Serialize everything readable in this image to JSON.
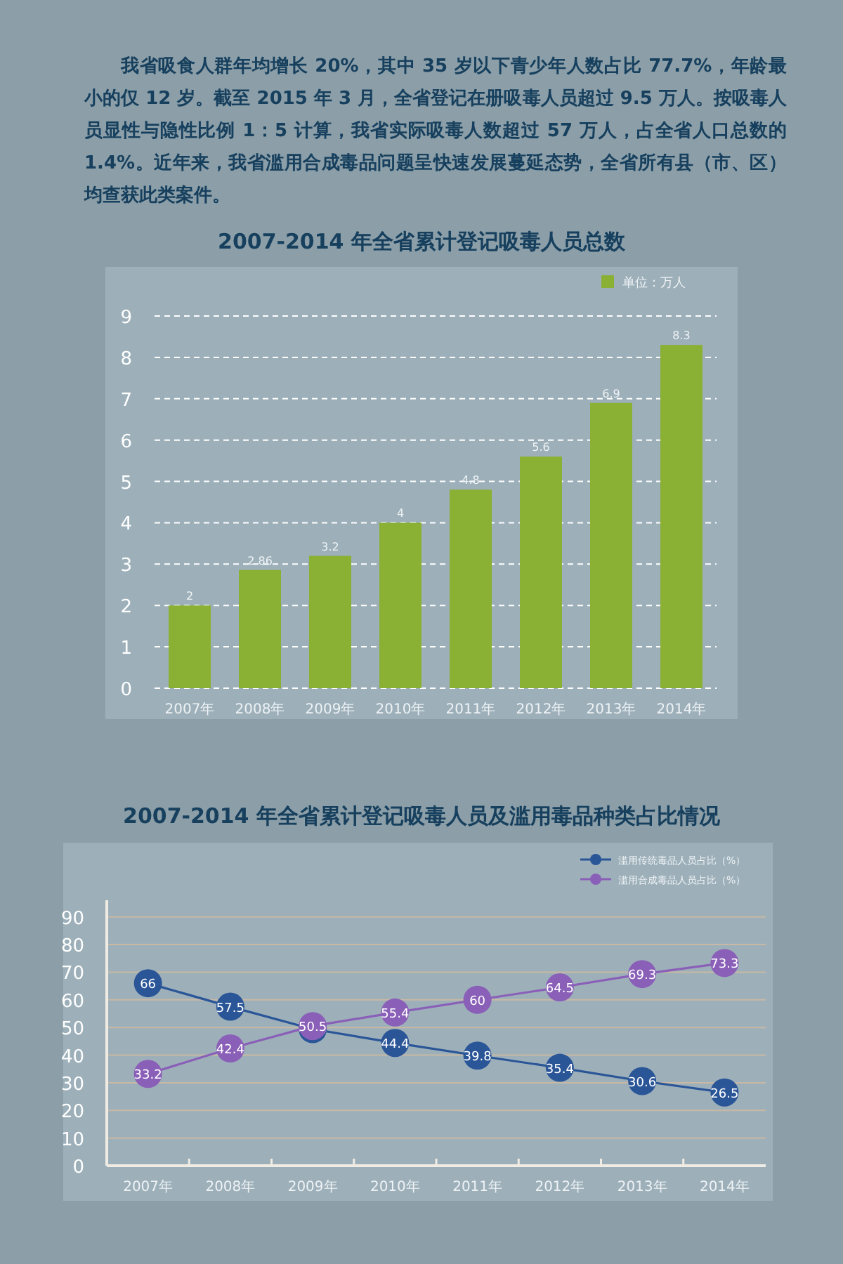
{
  "chart_data": [
    {
      "type": "bar",
      "title": "2007-2014 年全省累计登记吸毒人员总数",
      "annotations": [
        "我省吸食人群年均增长 20%，其中 35 岁以下青少年人数占比 77.7%，年龄最小的仅 12 岁。截至 2015 年 3 月，全省登记在册吸毒人员超过 9.5 万人。按吸毒人员显性与隐性比例 1：5 计算，我省实际吸毒人数超过 57 万人，占全省人口总数的 1.4%。近年来，我省滥用合成毒品问题呈快速发展蔓延态势，全省所有县（市、区）均查获此类案件。"
      ],
      "categories": [
        "2007年",
        "2008年",
        "2009年",
        "2010年",
        "2011年",
        "2012年",
        "2013年",
        "2014年"
      ],
      "series": [
        {
          "name": "单位：万人",
          "color": "#8ab034",
          "values": [
            2,
            2.86,
            3.2,
            4,
            4.8,
            5.6,
            6.9,
            8.3
          ]
        }
      ],
      "ylim": [
        0,
        9
      ],
      "yticks": [
        0,
        1,
        2,
        3,
        4,
        5,
        6,
        7,
        8,
        9
      ],
      "grid": "y",
      "legend": "top right",
      "data_labels": true
    },
    {
      "type": "line",
      "title": "2007-2014 年全省累计登记吸毒人员及滥用毒品种类占比情况",
      "categories": [
        "2007年",
        "2008年",
        "2009年",
        "2010年",
        "2011年",
        "2012年",
        "2013年",
        "2014年"
      ],
      "series": [
        {
          "name": "滥用传统毒品人员占比（%）",
          "color": "#2a5597",
          "values": [
            66,
            57.5,
            49.4,
            44.4,
            39.8,
            35.4,
            30.6,
            26.5
          ]
        },
        {
          "name": "滥用合成毒品人员占比（%）",
          "color": "#8a5fb8",
          "values": [
            33.2,
            42.4,
            50.5,
            55.4,
            60,
            64.5,
            69.3,
            73.3
          ]
        }
      ],
      "ylim": [
        0,
        96
      ],
      "yticks": [
        0,
        10,
        20,
        30,
        40,
        50,
        60,
        70,
        80,
        90
      ],
      "grid": "y",
      "legend": "top right",
      "marker": "circle",
      "line_style": "solid",
      "data_labels": true
    }
  ]
}
